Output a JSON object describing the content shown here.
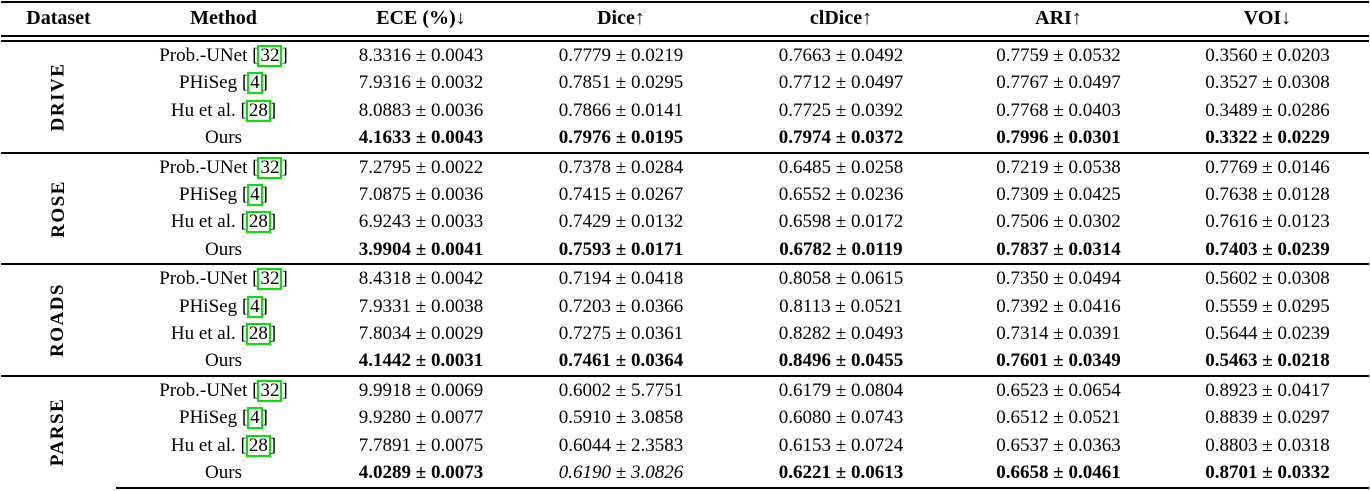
{
  "table": {
    "headers": [
      "Dataset",
      "Method",
      "ECE (%)↓",
      "Dice↑",
      "clDice↑",
      "ARI↑",
      "VOI↓"
    ],
    "cite_brackets": [
      "[",
      "]"
    ],
    "citation_box_color": "#00e400",
    "text_color": "#000000",
    "background_color": "#ffffff",
    "groups": [
      {
        "dataset": "DRIVE",
        "rows": [
          {
            "method": "Prob.-UNet",
            "cite": "32",
            "values": [
              "8.3316 ± 0.0043",
              "0.7779 ± 0.0219",
              "0.7663 ± 0.0492",
              "0.7759 ± 0.0532",
              "0.3560 ± 0.0203"
            ],
            "value_styles": [
              "plain",
              "plain",
              "plain",
              "plain",
              "plain"
            ]
          },
          {
            "method": "PHiSeg",
            "cite": "4",
            "values": [
              "7.9316 ± 0.0032",
              "0.7851 ± 0.0295",
              "0.7712 ± 0.0497",
              "0.7767 ± 0.0497",
              "0.3527 ± 0.0308"
            ],
            "value_styles": [
              "plain",
              "plain",
              "plain",
              "plain",
              "plain"
            ]
          },
          {
            "method": "Hu et al.",
            "cite": "28",
            "values": [
              "8.0883 ± 0.0036",
              "0.7866 ± 0.0141",
              "0.7725 ± 0.0392",
              "0.7768 ± 0.0403",
              "0.3489 ± 0.0286"
            ],
            "value_styles": [
              "plain",
              "plain",
              "plain",
              "plain",
              "plain"
            ]
          },
          {
            "method": "Ours",
            "cite": null,
            "values": [
              "4.1633 ± 0.0043",
              "0.7976 ± 0.0195",
              "0.7974 ± 0.0372",
              "0.7996 ± 0.0301",
              "0.3322 ± 0.0229"
            ],
            "value_styles": [
              "bold",
              "bold",
              "bold",
              "bold",
              "bold"
            ]
          }
        ]
      },
      {
        "dataset": "ROSE",
        "rows": [
          {
            "method": "Prob.-UNet",
            "cite": "32",
            "values": [
              "7.2795 ± 0.0022",
              "0.7378 ± 0.0284",
              "0.6485 ± 0.0258",
              "0.7219 ± 0.0538",
              "0.7769 ± 0.0146"
            ],
            "value_styles": [
              "plain",
              "plain",
              "plain",
              "plain",
              "plain"
            ]
          },
          {
            "method": "PHiSeg",
            "cite": "4",
            "values": [
              "7.0875 ± 0.0036",
              "0.7415 ± 0.0267",
              "0.6552 ± 0.0236",
              "0.7309 ± 0.0425",
              "0.7638 ± 0.0128"
            ],
            "value_styles": [
              "plain",
              "plain",
              "plain",
              "plain",
              "plain"
            ]
          },
          {
            "method": "Hu et al.",
            "cite": "28",
            "values": [
              "6.9243 ± 0.0033",
              "0.7429 ± 0.0132",
              "0.6598 ± 0.0172",
              "0.7506 ± 0.0302",
              "0.7616 ± 0.0123"
            ],
            "value_styles": [
              "plain",
              "plain",
              "plain",
              "plain",
              "plain"
            ]
          },
          {
            "method": "Ours",
            "cite": null,
            "values": [
              "3.9904 ± 0.0041",
              "0.7593 ± 0.0171",
              "0.6782 ± 0.0119",
              "0.7837 ± 0.0314",
              "0.7403 ± 0.0239"
            ],
            "value_styles": [
              "bold",
              "bold",
              "bold",
              "bold",
              "bold"
            ]
          }
        ]
      },
      {
        "dataset": "ROADS",
        "rows": [
          {
            "method": "Prob.-UNet",
            "cite": "32",
            "values": [
              "8.4318 ± 0.0042",
              "0.7194 ± 0.0418",
              "0.8058 ± 0.0615",
              "0.7350 ± 0.0494",
              "0.5602 ± 0.0308"
            ],
            "value_styles": [
              "plain",
              "plain",
              "plain",
              "plain",
              "plain"
            ]
          },
          {
            "method": "PHiSeg",
            "cite": "4",
            "values": [
              "7.9331 ± 0.0038",
              "0.7203 ± 0.0366",
              "0.8113 ± 0.0521",
              "0.7392 ± 0.0416",
              "0.5559 ± 0.0295"
            ],
            "value_styles": [
              "plain",
              "plain",
              "plain",
              "plain",
              "plain"
            ]
          },
          {
            "method": "Hu et al.",
            "cite": "28",
            "values": [
              "7.8034 ± 0.0029",
              "0.7275 ± 0.0361",
              "0.8282 ± 0.0493",
              "0.7314 ± 0.0391",
              "0.5644 ± 0.0239"
            ],
            "value_styles": [
              "plain",
              "plain",
              "plain",
              "plain",
              "plain"
            ]
          },
          {
            "method": "Ours",
            "cite": null,
            "values": [
              "4.1442 ± 0.0031",
              "0.7461 ± 0.0364",
              "0.8496 ± 0.0455",
              "0.7601 ± 0.0349",
              "0.5463 ± 0.0218"
            ],
            "value_styles": [
              "bold",
              "bold",
              "bold",
              "bold",
              "bold"
            ]
          }
        ]
      },
      {
        "dataset": "PARSE",
        "rows": [
          {
            "method": "Prob.-UNet",
            "cite": "32",
            "values": [
              "9.9918 ± 0.0069",
              "0.6002 ± 5.7751",
              "0.6179 ± 0.0804",
              "0.6523 ± 0.0654",
              "0.8923 ± 0.0417"
            ],
            "value_styles": [
              "plain",
              "plain",
              "plain",
              "plain",
              "plain"
            ]
          },
          {
            "method": "PHiSeg",
            "cite": "4",
            "values": [
              "9.9280 ± 0.0077",
              "0.5910 ± 3.0858",
              "0.6080 ± 0.0743",
              "0.6512 ± 0.0521",
              "0.8839 ± 0.0297"
            ],
            "value_styles": [
              "plain",
              "plain",
              "plain",
              "plain",
              "plain"
            ]
          },
          {
            "method": "Hu et al.",
            "cite": "28",
            "values": [
              "7.7891 ± 0.0075",
              "0.6044 ± 2.3583",
              "0.6153 ± 0.0724",
              "0.6537 ± 0.0363",
              "0.8803 ± 0.0318"
            ],
            "value_styles": [
              "plain",
              "plain",
              "plain",
              "plain",
              "plain"
            ]
          },
          {
            "method": "Ours",
            "cite": null,
            "values": [
              "4.0289 ± 0.0073",
              "0.6190 ± 3.0826",
              "0.6221 ± 0.0613",
              "0.6658 ± 0.0461",
              "0.8701 ± 0.0332"
            ],
            "value_styles": [
              "bold",
              "italic",
              "bold",
              "bold",
              "bold"
            ]
          }
        ]
      }
    ]
  }
}
